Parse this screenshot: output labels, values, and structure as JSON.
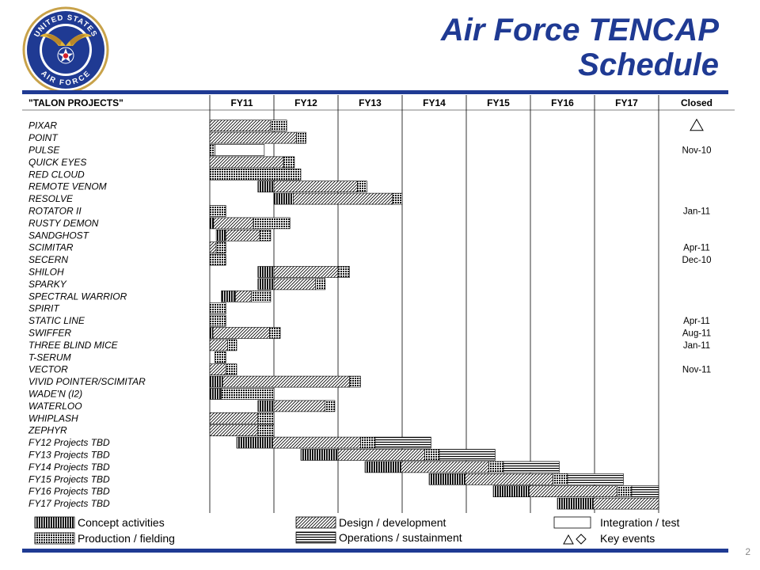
{
  "header": {
    "title_line1": "Air Force TENCAP",
    "title_line2": "Schedule",
    "logo": {
      "top_text": "UNITED STATES",
      "bottom_text": "AIR FORCE",
      "icon": "us-air-force-roundel-icon"
    },
    "page_number": "2"
  },
  "colors": {
    "accent": "#1f3a93",
    "bar_fill": "#ffffff",
    "text": "#000000"
  },
  "chart_data": {
    "type": "gantt",
    "title": "Air Force TENCAP Schedule",
    "row_header": "\"TALON PROJECTS\"",
    "closed_header": "Closed",
    "columns": [
      "FY11",
      "FY12",
      "FY13",
      "FY14",
      "FY15",
      "FY16",
      "FY17"
    ],
    "rows": [
      {
        "label": "PIXAR",
        "closed": "",
        "key_event": "triangle",
        "segments": [
          [
            "design",
            0.0,
            0.95
          ],
          [
            "production",
            0.95,
            1.2
          ]
        ]
      },
      {
        "label": "POINT",
        "closed": "",
        "segments": [
          [
            "design",
            0.0,
            1.35
          ],
          [
            "production",
            1.35,
            1.5
          ]
        ]
      },
      {
        "label": "PULSE",
        "closed": "Nov-10",
        "segments": [
          [
            "production",
            0.0,
            0.08
          ],
          [
            "integration",
            0.08,
            0.85
          ]
        ]
      },
      {
        "label": "QUICK EYES",
        "closed": "",
        "segments": [
          [
            "design",
            0.0,
            1.15
          ],
          [
            "production",
            1.15,
            1.32
          ]
        ]
      },
      {
        "label": "RED CLOUD",
        "closed": "",
        "segments": [
          [
            "production",
            0.0,
            1.42
          ]
        ]
      },
      {
        "label": "REMOTE VENOM",
        "closed": "",
        "segments": [
          [
            "concept",
            0.75,
            1.0
          ],
          [
            "design",
            1.0,
            2.3
          ],
          [
            "production",
            2.3,
            2.45
          ]
        ]
      },
      {
        "label": "RESOLVE",
        "closed": "",
        "segments": [
          [
            "concept",
            1.0,
            1.3
          ],
          [
            "design",
            1.3,
            2.85
          ],
          [
            "production",
            2.85,
            3.0
          ]
        ]
      },
      {
        "label": "ROTATOR II",
        "closed": "Jan-11",
        "segments": [
          [
            "production",
            0.0,
            0.25
          ]
        ]
      },
      {
        "label": "RUSTY DEMON",
        "closed": "",
        "segments": [
          [
            "concept",
            0.0,
            0.06
          ],
          [
            "design",
            0.06,
            0.68
          ],
          [
            "production",
            0.68,
            1.25
          ]
        ]
      },
      {
        "label": "SANDGHOST",
        "closed": "",
        "segments": [
          [
            "concept",
            0.1,
            0.25
          ],
          [
            "design",
            0.25,
            0.78
          ],
          [
            "production",
            0.78,
            0.95
          ]
        ]
      },
      {
        "label": "SCIMITAR",
        "closed": "Apr-11",
        "segments": [
          [
            "design",
            0.0,
            0.1
          ],
          [
            "production",
            0.1,
            0.25
          ]
        ]
      },
      {
        "label": "SECERN",
        "closed": "Dec-10",
        "segments": [
          [
            "production",
            0.0,
            0.25
          ]
        ]
      },
      {
        "label": "SHILOH",
        "closed": "",
        "segments": [
          [
            "concept",
            0.75,
            1.0
          ],
          [
            "design",
            1.0,
            2.0
          ],
          [
            "production",
            2.0,
            2.18
          ]
        ]
      },
      {
        "label": "SPARKY",
        "closed": "",
        "segments": [
          [
            "concept",
            0.75,
            1.0
          ],
          [
            "design",
            1.0,
            1.65
          ],
          [
            "production",
            1.65,
            1.8
          ]
        ]
      },
      {
        "label": "SPECTRAL WARRIOR",
        "closed": "",
        "segments": [
          [
            "concept",
            0.18,
            0.4
          ],
          [
            "design",
            0.4,
            0.65
          ],
          [
            "production",
            0.65,
            0.95
          ]
        ]
      },
      {
        "label": "SPIRIT",
        "closed": "",
        "segments": [
          [
            "production",
            0.0,
            0.25
          ]
        ]
      },
      {
        "label": "STATIC LINE",
        "closed": "Apr-11",
        "segments": [
          [
            "production",
            0.0,
            0.25
          ]
        ]
      },
      {
        "label": "SWIFFER",
        "closed": "Aug-11",
        "segments": [
          [
            "concept",
            0.0,
            0.05
          ],
          [
            "design",
            0.05,
            0.93
          ],
          [
            "production",
            0.93,
            1.1
          ]
        ]
      },
      {
        "label": "THREE BLIND MICE",
        "closed": "Jan-11",
        "segments": [
          [
            "design",
            0.0,
            0.28
          ],
          [
            "production",
            0.28,
            0.42
          ]
        ]
      },
      {
        "label": "T-SERUM",
        "closed": "",
        "segments": [
          [
            "production",
            0.08,
            0.25
          ]
        ]
      },
      {
        "label": "VECTOR",
        "closed": "Nov-11",
        "segments": [
          [
            "design",
            0.0,
            0.25
          ],
          [
            "production",
            0.25,
            0.42
          ]
        ]
      },
      {
        "label": "VIVID POINTER/SCIMITAR",
        "closed": "",
        "segments": [
          [
            "concept",
            0.0,
            0.2
          ],
          [
            "design",
            0.2,
            2.18
          ],
          [
            "production",
            2.18,
            2.35
          ]
        ]
      },
      {
        "label": "WADE'N (I2)",
        "closed": "",
        "segments": [
          [
            "concept",
            0.0,
            0.18
          ],
          [
            "production",
            0.18,
            1.0
          ]
        ]
      },
      {
        "label": "WATERLOO",
        "closed": "",
        "segments": [
          [
            "concept",
            0.75,
            1.0
          ],
          [
            "design",
            1.0,
            1.8
          ],
          [
            "production",
            1.8,
            1.95
          ]
        ]
      },
      {
        "label": "WHIPLASH",
        "closed": "",
        "segments": [
          [
            "design",
            0.0,
            0.75
          ],
          [
            "production",
            0.75,
            1.0
          ]
        ]
      },
      {
        "label": "ZEPHYR",
        "closed": "",
        "segments": [
          [
            "design",
            0.0,
            0.75
          ],
          [
            "production",
            0.75,
            1.0
          ]
        ]
      },
      {
        "label": "FY12 Projects TBD",
        "closed": "",
        "segments": [
          [
            "concept",
            0.42,
            0.98
          ],
          [
            "design",
            0.98,
            2.35
          ],
          [
            "production",
            2.35,
            2.58
          ],
          [
            "operations",
            2.58,
            3.45
          ]
        ]
      },
      {
        "label": "FY13 Projects TBD",
        "closed": "",
        "segments": [
          [
            "concept",
            1.42,
            2.0
          ],
          [
            "design",
            2.0,
            3.35
          ],
          [
            "production",
            3.35,
            3.58
          ],
          [
            "operations",
            3.58,
            4.45
          ]
        ]
      },
      {
        "label": "FY14 Projects TBD",
        "closed": "",
        "segments": [
          [
            "concept",
            2.42,
            2.98
          ],
          [
            "design",
            2.98,
            4.35
          ],
          [
            "production",
            4.35,
            4.58
          ],
          [
            "operations",
            4.58,
            5.45
          ]
        ]
      },
      {
        "label": "FY15 Projects TBD",
        "closed": "",
        "segments": [
          [
            "concept",
            3.42,
            3.98
          ],
          [
            "design",
            3.98,
            5.35
          ],
          [
            "production",
            5.35,
            5.58
          ],
          [
            "operations",
            5.58,
            6.45
          ]
        ]
      },
      {
        "label": "FY16 Projects TBD",
        "closed": "",
        "segments": [
          [
            "concept",
            4.42,
            4.98
          ],
          [
            "design",
            4.98,
            6.35
          ],
          [
            "production",
            6.35,
            6.58
          ],
          [
            "operations",
            6.58,
            7.0
          ]
        ]
      },
      {
        "label": "FY17 Projects TBD",
        "closed": "",
        "segments": [
          [
            "concept",
            5.42,
            5.98
          ],
          [
            "design",
            5.98,
            7.0
          ]
        ]
      }
    ],
    "legend": [
      {
        "pattern": "concept",
        "label": "Concept activities"
      },
      {
        "pattern": "production",
        "label": "Production / fielding"
      },
      {
        "pattern": "design",
        "label": "Design / development"
      },
      {
        "pattern": "operations",
        "label": "Operations / sustainment"
      },
      {
        "pattern": "integration",
        "label": "Integration / test"
      },
      {
        "pattern": "keyevents",
        "label": "Key events"
      }
    ]
  }
}
